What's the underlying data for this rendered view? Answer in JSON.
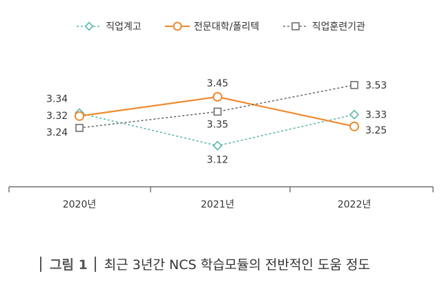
{
  "chart_data": {
    "type": "line",
    "categories": [
      "2020년",
      "2021년",
      "2022년"
    ],
    "series": [
      {
        "name": "직업계고",
        "values": [
          3.34,
          3.12,
          3.33
        ],
        "color": "#5bb8ad",
        "marker": "diamond",
        "dash": true
      },
      {
        "name": "전문대학/폴리텍",
        "values": [
          3.32,
          3.45,
          3.25
        ],
        "color": "#ef8a2e",
        "marker": "circle",
        "dash": false
      },
      {
        "name": "직업훈련기관",
        "values": [
          3.24,
          3.35,
          3.53
        ],
        "color": "#6d6d6d",
        "marker": "square",
        "dash": true
      }
    ],
    "labels": [
      [
        "3.34",
        "3.12",
        "3.33"
      ],
      [
        "3.32",
        "3.45",
        "3.25"
      ],
      [
        "3.24",
        "3.35",
        "3.53"
      ]
    ],
    "grid": false,
    "legend_position": "top"
  },
  "caption": {
    "label": "그림 1",
    "title": "최근 3년간 NCS 학습모듈의 전반적인 도움 정도"
  }
}
